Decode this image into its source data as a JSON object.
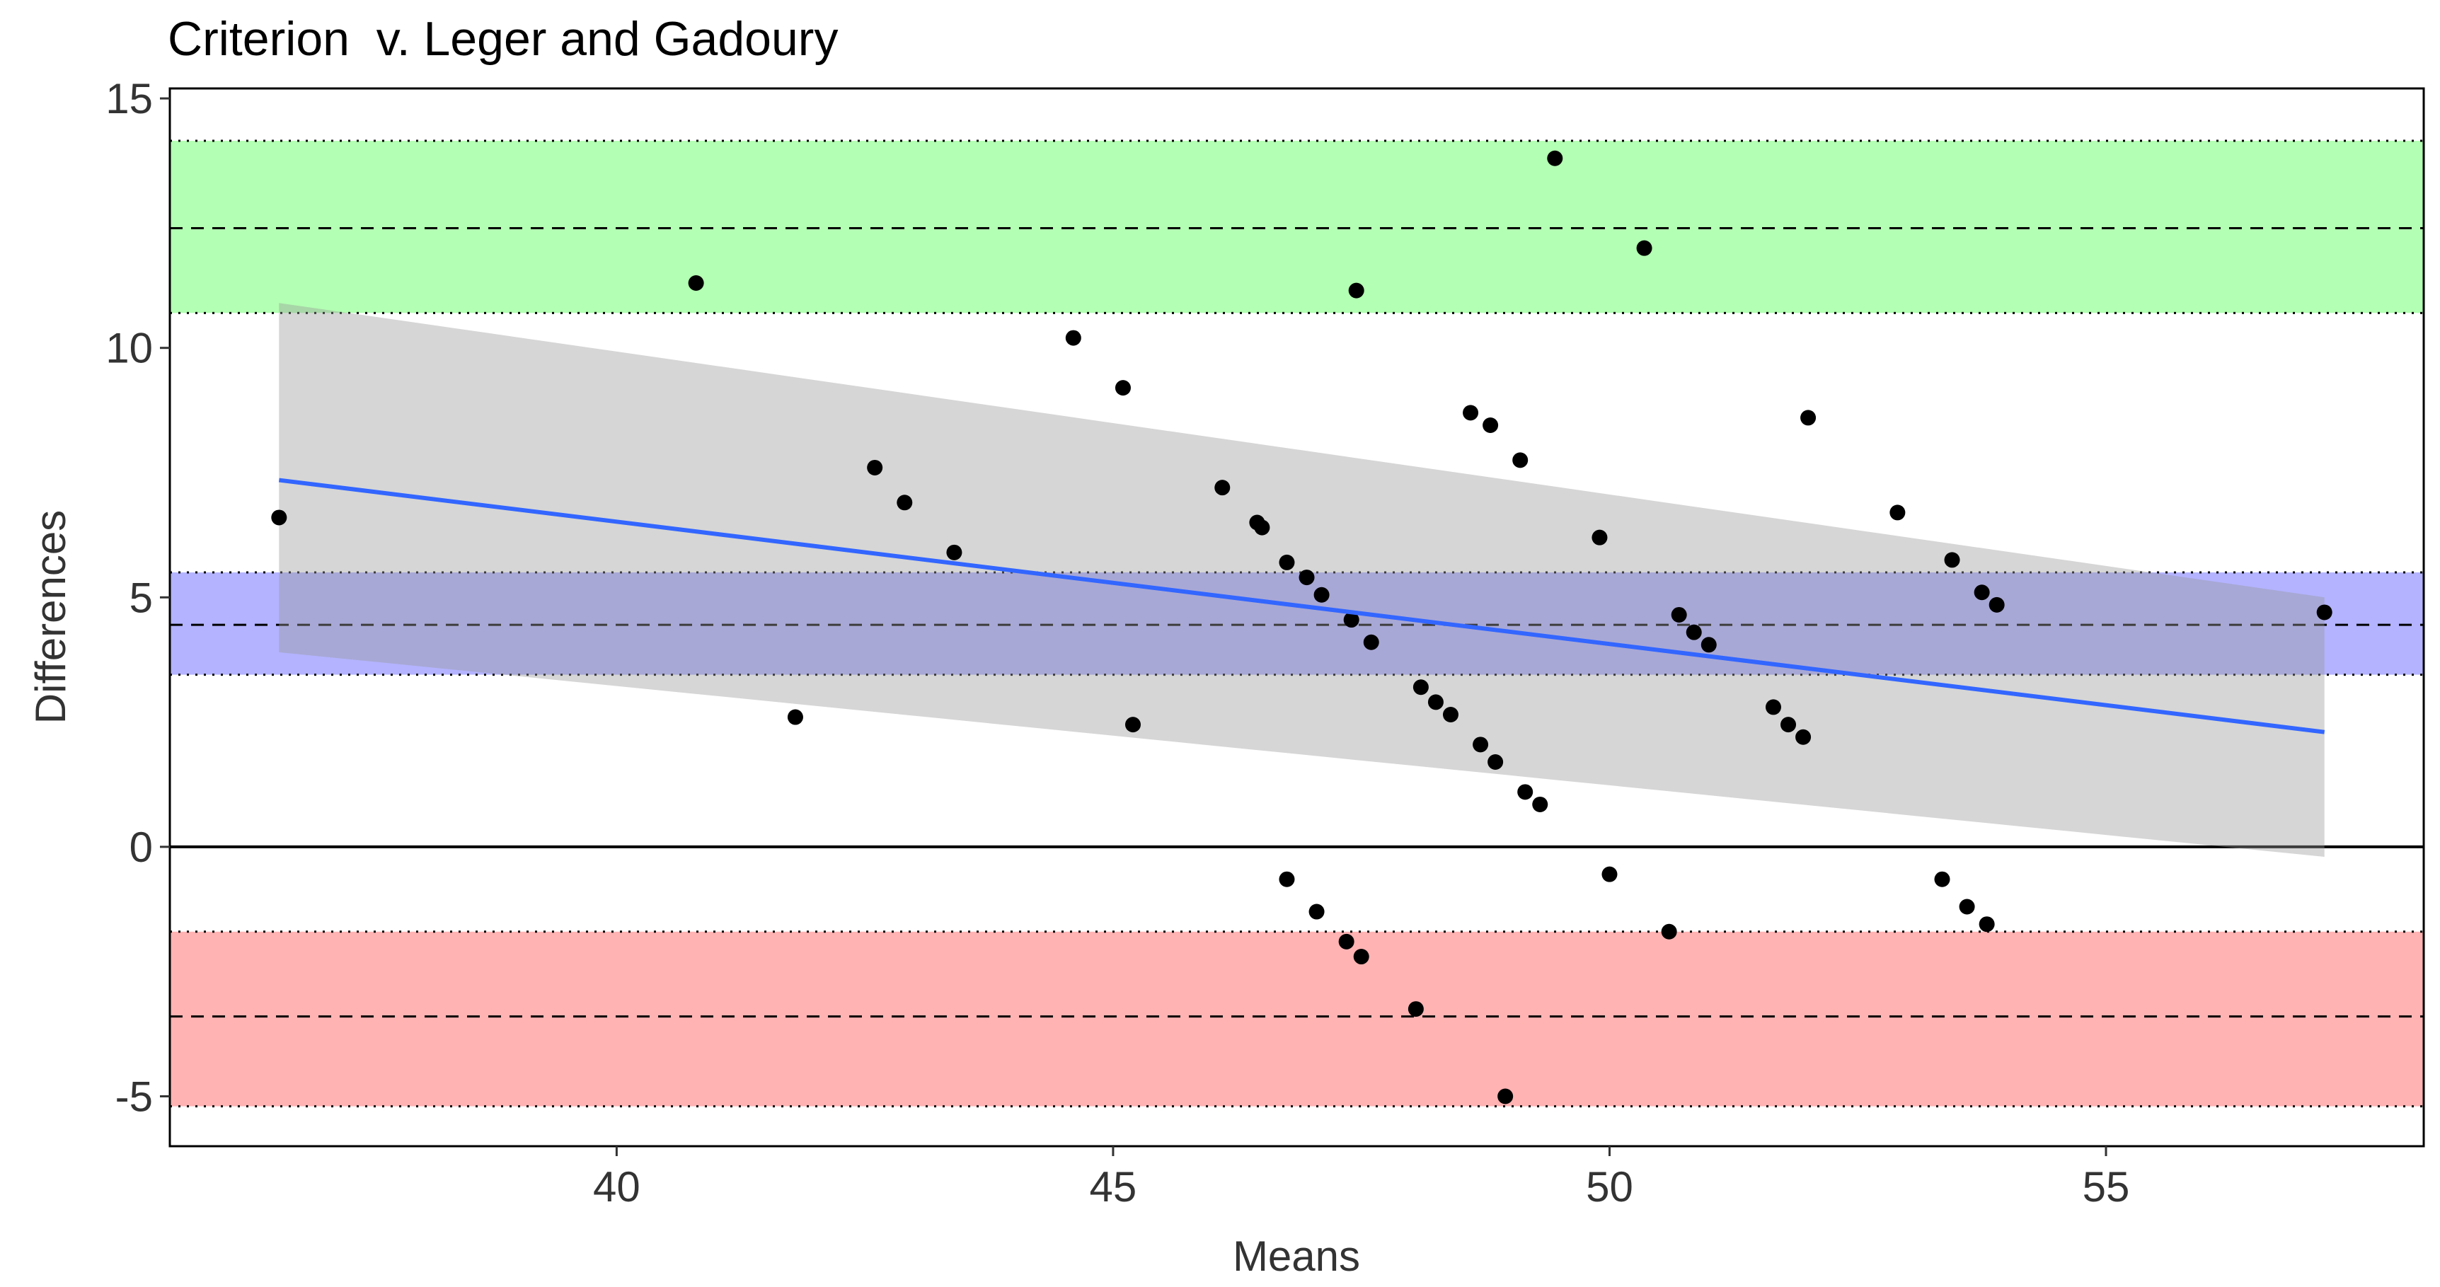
{
  "chart_data": {
    "type": "scatter",
    "title": "Criterion  v. Leger and Gadoury",
    "xlabel": "Means",
    "ylabel": "Differences",
    "xlim": [
      35.5,
      58.2
    ],
    "ylim": [
      -6,
      15.2
    ],
    "xticks": [
      40,
      45,
      50,
      55
    ],
    "yticks": [
      15,
      10,
      5,
      0,
      -5
    ],
    "xtick_labels": [
      "40",
      "45",
      "50",
      "55"
    ],
    "ytick_labels": [
      "15",
      "10",
      "5",
      "0",
      "-5"
    ],
    "grid": false,
    "bands": [
      {
        "name": "upper-limit-of-agreement",
        "center": 12.4,
        "lower": 10.7,
        "upper": 14.15,
        "color": "#b3ffb3"
      },
      {
        "name": "mean-difference",
        "center": 4.45,
        "lower": 3.45,
        "upper": 5.5,
        "color": "#b3b3ff"
      },
      {
        "name": "lower-limit-of-agreement",
        "center": -3.4,
        "lower": -5.2,
        "upper": -1.7,
        "color": "#ffb3b3"
      }
    ],
    "zero_line": 0,
    "regression": {
      "line_color": "#3366ff",
      "ci_color": "#999999",
      "x": [
        36.6,
        57.2
      ],
      "y": [
        7.35,
        2.3
      ],
      "ci_lower": [
        3.9,
        -0.2
      ],
      "ci_upper": [
        10.9,
        5.0
      ]
    },
    "points": [
      {
        "x": 36.6,
        "y": 6.6
      },
      {
        "x": 40.8,
        "y": 11.3
      },
      {
        "x": 41.8,
        "y": 2.6
      },
      {
        "x": 42.6,
        "y": 7.6
      },
      {
        "x": 42.9,
        "y": 6.9
      },
      {
        "x": 43.4,
        "y": 5.9
      },
      {
        "x": 44.6,
        "y": 10.2
      },
      {
        "x": 45.1,
        "y": 9.2
      },
      {
        "x": 45.2,
        "y": 2.45
      },
      {
        "x": 46.1,
        "y": 7.2
      },
      {
        "x": 46.45,
        "y": 6.5
      },
      {
        "x": 46.5,
        "y": 6.4
      },
      {
        "x": 46.75,
        "y": 5.7
      },
      {
        "x": 46.95,
        "y": 5.4
      },
      {
        "x": 47.1,
        "y": 5.05
      },
      {
        "x": 47.4,
        "y": 4.55
      },
      {
        "x": 47.6,
        "y": 4.1
      },
      {
        "x": 47.45,
        "y": 11.15
      },
      {
        "x": 46.75,
        "y": -0.65
      },
      {
        "x": 47.05,
        "y": -1.3
      },
      {
        "x": 47.35,
        "y": -1.9
      },
      {
        "x": 47.5,
        "y": -2.2
      },
      {
        "x": 48.05,
        "y": -3.25
      },
      {
        "x": 48.1,
        "y": 3.2
      },
      {
        "x": 48.25,
        "y": 2.9
      },
      {
        "x": 48.4,
        "y": 2.65
      },
      {
        "x": 48.6,
        "y": 8.7
      },
      {
        "x": 48.8,
        "y": 8.45
      },
      {
        "x": 48.7,
        "y": 2.05
      },
      {
        "x": 48.85,
        "y": 1.7
      },
      {
        "x": 48.95,
        "y": -5.0
      },
      {
        "x": 49.15,
        "y": 1.1
      },
      {
        "x": 49.3,
        "y": 0.85
      },
      {
        "x": 49.1,
        "y": 7.75
      },
      {
        "x": 49.45,
        "y": 13.8
      },
      {
        "x": 49.9,
        "y": 6.2
      },
      {
        "x": 50.0,
        "y": -0.55
      },
      {
        "x": 50.35,
        "y": 12.0
      },
      {
        "x": 50.6,
        "y": -1.7
      },
      {
        "x": 50.7,
        "y": 4.65
      },
      {
        "x": 50.85,
        "y": 4.3
      },
      {
        "x": 51.0,
        "y": 4.05
      },
      {
        "x": 51.65,
        "y": 2.8
      },
      {
        "x": 51.8,
        "y": 2.45
      },
      {
        "x": 51.95,
        "y": 2.2
      },
      {
        "x": 52.0,
        "y": 8.6
      },
      {
        "x": 52.9,
        "y": 6.7
      },
      {
        "x": 53.35,
        "y": -0.65
      },
      {
        "x": 53.45,
        "y": 5.75
      },
      {
        "x": 53.6,
        "y": -1.2
      },
      {
        "x": 53.75,
        "y": 5.1
      },
      {
        "x": 53.8,
        "y": -1.55
      },
      {
        "x": 53.9,
        "y": 4.85
      },
      {
        "x": 57.2,
        "y": 4.7
      }
    ]
  }
}
